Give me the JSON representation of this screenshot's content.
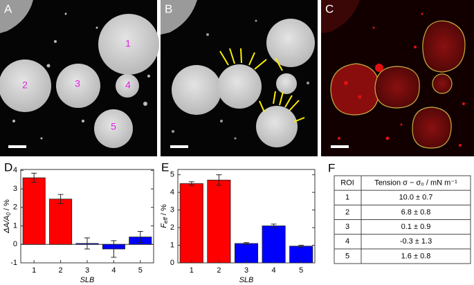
{
  "panels": {
    "A": {
      "label": "A",
      "regions": [
        "1",
        "2",
        "3",
        "4",
        "5"
      ]
    },
    "B": {
      "label": "B"
    },
    "C": {
      "label": "C"
    }
  },
  "chart_data": [
    {
      "type": "bar",
      "panel_label": "D",
      "ylabel": {
        "text": "ΔA/A",
        "sub": "0",
        "unit": " / %"
      },
      "xlabel": "SLB",
      "categories": [
        "1",
        "2",
        "3",
        "4",
        "5"
      ],
      "values": [
        3.6,
        2.45,
        0.05,
        -0.25,
        0.4
      ],
      "errors": [
        0.25,
        0.25,
        0.3,
        0.45,
        0.3
      ],
      "colors": [
        "#ff0000",
        "#ff0000",
        "#0000ff",
        "#0000ff",
        "#0000ff"
      ],
      "ylim": [
        -1,
        4.05
      ],
      "yticks": [
        -1,
        0,
        1,
        2,
        3,
        4
      ]
    },
    {
      "type": "bar",
      "panel_label": "E",
      "ylabel": {
        "text": "F",
        "sub": "eff",
        "unit": " / %"
      },
      "xlabel": "SLB",
      "categories": [
        "1",
        "2",
        "3",
        "4",
        "5"
      ],
      "values": [
        4.5,
        4.7,
        1.1,
        2.1,
        0.95
      ],
      "errors": [
        0.1,
        0.3,
        0.05,
        0.1,
        0.05
      ],
      "colors": [
        "#ff0000",
        "#ff0000",
        "#0000ff",
        "#0000ff",
        "#0000ff"
      ],
      "ylim": [
        0,
        5.3
      ],
      "yticks": [
        0,
        1,
        2,
        3,
        4,
        5
      ]
    }
  ],
  "table": {
    "panel_label": "F",
    "header": [
      "ROI",
      "Tension  σ − σ₀ / mN m⁻¹"
    ],
    "rows": [
      [
        "1",
        "10.0 ± 0.7"
      ],
      [
        "2",
        "6.8 ± 0.8"
      ],
      [
        "3",
        "0.1 ± 0.9"
      ],
      [
        "4",
        "-0.3 ± 1.3"
      ],
      [
        "5",
        "1.6 ± 0.8"
      ]
    ]
  }
}
